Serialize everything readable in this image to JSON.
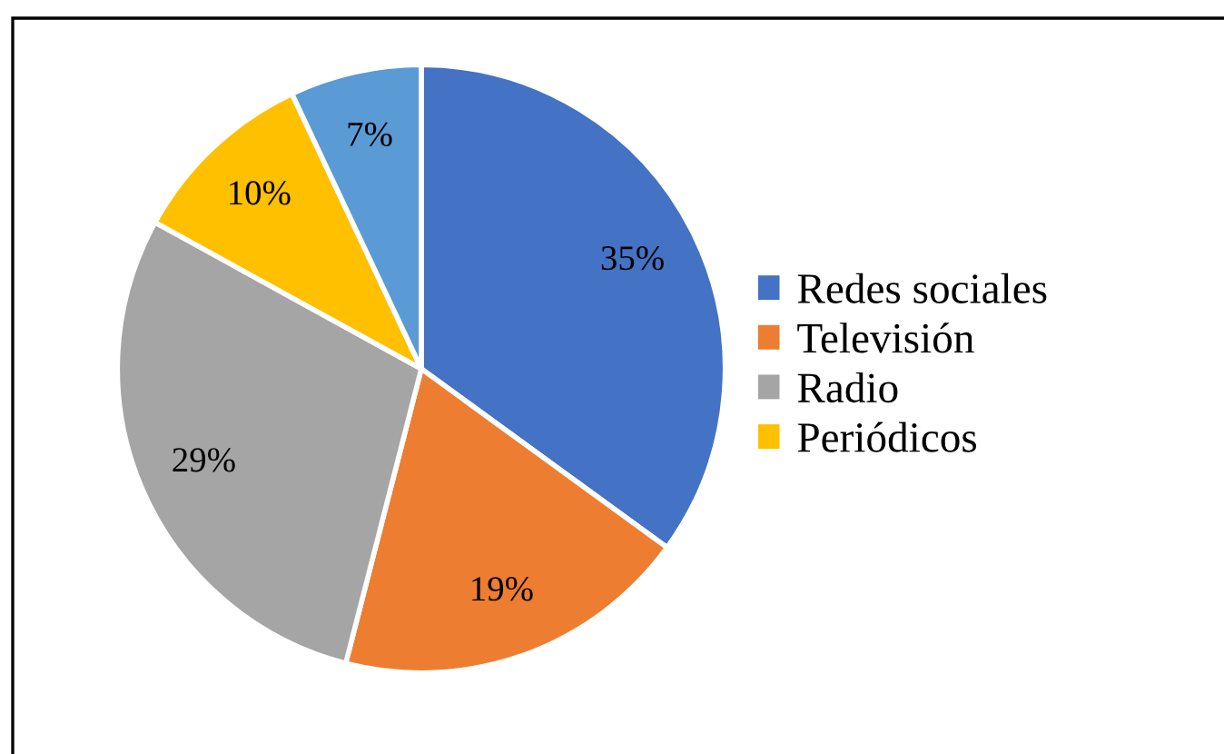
{
  "chart_data": {
    "type": "pie",
    "categories": [
      "Redes sociales",
      "Televisión",
      "Radio",
      "Periódicos",
      null
    ],
    "values": [
      35,
      19,
      29,
      10,
      7
    ],
    "colors": [
      "#4472c4",
      "#ed7d31",
      "#a5a5a5",
      "#ffc000",
      "#5b9bd5"
    ],
    "value_labels": [
      "35%",
      "19%",
      "29%",
      "10%",
      "7%"
    ],
    "legend": "right"
  }
}
